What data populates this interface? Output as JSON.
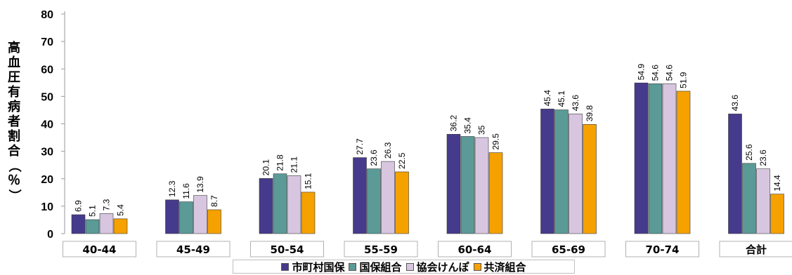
{
  "chart_data": {
    "type": "bar",
    "ylabel": "高血圧有病者割合（％）",
    "ylim": [
      0,
      80
    ],
    "yticks": [
      0,
      10,
      20,
      30,
      40,
      50,
      60,
      70,
      80
    ],
    "grid": false,
    "legend_position": "bottom",
    "categories": [
      "40-44",
      "45-49",
      "50-54",
      "55-59",
      "60-64",
      "65-69",
      "70-74",
      "合計"
    ],
    "series": [
      {
        "name": "市町村国保",
        "color": "#463a8c",
        "values": [
          6.9,
          12.3,
          20.1,
          27.7,
          36.2,
          45.4,
          54.9,
          43.6
        ]
      },
      {
        "name": "国保組合",
        "color": "#5b9a97",
        "values": [
          5.1,
          11.6,
          21.8,
          23.6,
          35.4,
          45.1,
          54.6,
          25.6
        ]
      },
      {
        "name": "協会けんぽ",
        "color": "#d8c6e0",
        "values": [
          7.3,
          13.9,
          21.1,
          26.3,
          35,
          43.6,
          54.6,
          23.6
        ]
      },
      {
        "name": "共済組合",
        "color": "#f5a100",
        "values": [
          5.4,
          8.7,
          15.1,
          22.5,
          29.5,
          39.8,
          51.9,
          14.4
        ]
      }
    ]
  }
}
